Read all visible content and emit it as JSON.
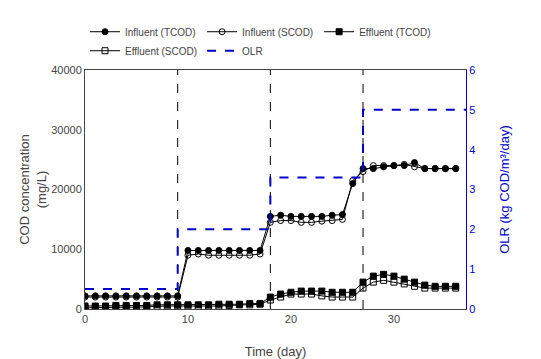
{
  "chart_data": {
    "type": "line",
    "xlabel": "Time (day)",
    "ylabel": "COD concentration\n(mg/L)",
    "y2label": "OLR (kg COD/m³/day)",
    "xlim": [
      0,
      37
    ],
    "ylim": [
      0,
      40000
    ],
    "y2lim": [
      0,
      6
    ],
    "xticks": [
      0,
      10,
      20,
      30
    ],
    "yticks": [
      0,
      10000,
      20000,
      30000,
      40000
    ],
    "y2ticks": [
      0,
      1,
      2,
      3,
      4,
      5,
      6
    ],
    "vlines": [
      9,
      18,
      27
    ],
    "grid": false,
    "legend": "upper left",
    "series": [
      {
        "name": "Influent (TCOD)",
        "color": "#000000",
        "marker": "circle",
        "line_style": "solid",
        "x": [
          0,
          1,
          2,
          3,
          4,
          5,
          6,
          7,
          8,
          9,
          10,
          11,
          12,
          13,
          14,
          15,
          16,
          17,
          18,
          19,
          20,
          21,
          22,
          23,
          24,
          25,
          26,
          27,
          28,
          29,
          30,
          31,
          32,
          33,
          34,
          35,
          36
        ],
        "values": [
          2200,
          2200,
          2200,
          2200,
          2200,
          2200,
          2200,
          2200,
          2200,
          2200,
          9800,
          9800,
          9800,
          9800,
          9800,
          9800,
          9800,
          9800,
          15500,
          15700,
          15500,
          15500,
          15500,
          15500,
          15700,
          15800,
          21000,
          23500,
          23500,
          23800,
          24000,
          24000,
          24500,
          23500,
          23500,
          23500,
          23500
        ]
      },
      {
        "name": "Influent (SCOD)",
        "color": "#000000",
        "marker": "circle-open",
        "line_style": "solid",
        "x": [
          0,
          1,
          2,
          3,
          4,
          5,
          6,
          7,
          8,
          9,
          10,
          11,
          12,
          13,
          14,
          15,
          16,
          17,
          18,
          19,
          20,
          21,
          22,
          23,
          24,
          25,
          26,
          27,
          28,
          29,
          30,
          31,
          32,
          33,
          34,
          35,
          36
        ],
        "values": [
          2000,
          2000,
          2000,
          2000,
          2000,
          2000,
          2000,
          2000,
          2000,
          2000,
          9000,
          9200,
          9000,
          9000,
          9000,
          9000,
          9000,
          9200,
          14500,
          14800,
          14800,
          14500,
          14500,
          14700,
          14800,
          15000,
          21500,
          23000,
          24000,
          24000,
          24000,
          24200,
          23800,
          23500,
          23500,
          23500,
          23500
        ]
      },
      {
        "name": "Effluent (TCOD)",
        "color": "#000000",
        "marker": "square",
        "line_style": "solid",
        "x": [
          0,
          1,
          2,
          3,
          4,
          5,
          6,
          7,
          8,
          9,
          10,
          11,
          12,
          13,
          14,
          15,
          16,
          17,
          18,
          19,
          20,
          21,
          22,
          23,
          24,
          25,
          26,
          27,
          28,
          29,
          30,
          31,
          32,
          33,
          34,
          35,
          36
        ],
        "values": [
          500,
          500,
          500,
          600,
          600,
          600,
          600,
          700,
          700,
          700,
          700,
          700,
          700,
          800,
          800,
          800,
          900,
          900,
          2000,
          2500,
          2800,
          3000,
          3000,
          3000,
          2800,
          2800,
          2800,
          4500,
          5500,
          5800,
          5500,
          5000,
          4500,
          4000,
          3800,
          3800,
          3800
        ]
      },
      {
        "name": "Effluent (SCOD)",
        "color": "#000000",
        "marker": "square-open",
        "line_style": "solid",
        "x": [
          0,
          1,
          2,
          3,
          4,
          5,
          6,
          7,
          8,
          9,
          10,
          11,
          12,
          13,
          14,
          15,
          16,
          17,
          18,
          19,
          20,
          21,
          22,
          23,
          24,
          25,
          26,
          27,
          28,
          29,
          30,
          31,
          32,
          33,
          34,
          35,
          36
        ],
        "values": [
          200,
          250,
          300,
          350,
          300,
          300,
          400,
          400,
          500,
          500,
          500,
          400,
          500,
          500,
          600,
          700,
          700,
          800,
          1500,
          2000,
          2500,
          2500,
          2500,
          2200,
          2000,
          2000,
          2000,
          3500,
          4500,
          4800,
          4500,
          4200,
          3800,
          3500,
          3500,
          3500,
          3500
        ]
      },
      {
        "name": "OLR",
        "color": "#0000cc",
        "line_style": "dash",
        "axis": "y2",
        "x": [
          0,
          9,
          9,
          18,
          18,
          27,
          27,
          37
        ],
        "values": [
          0.5,
          0.5,
          2.0,
          2.0,
          3.3,
          3.3,
          5.0,
          5.0
        ]
      }
    ]
  }
}
